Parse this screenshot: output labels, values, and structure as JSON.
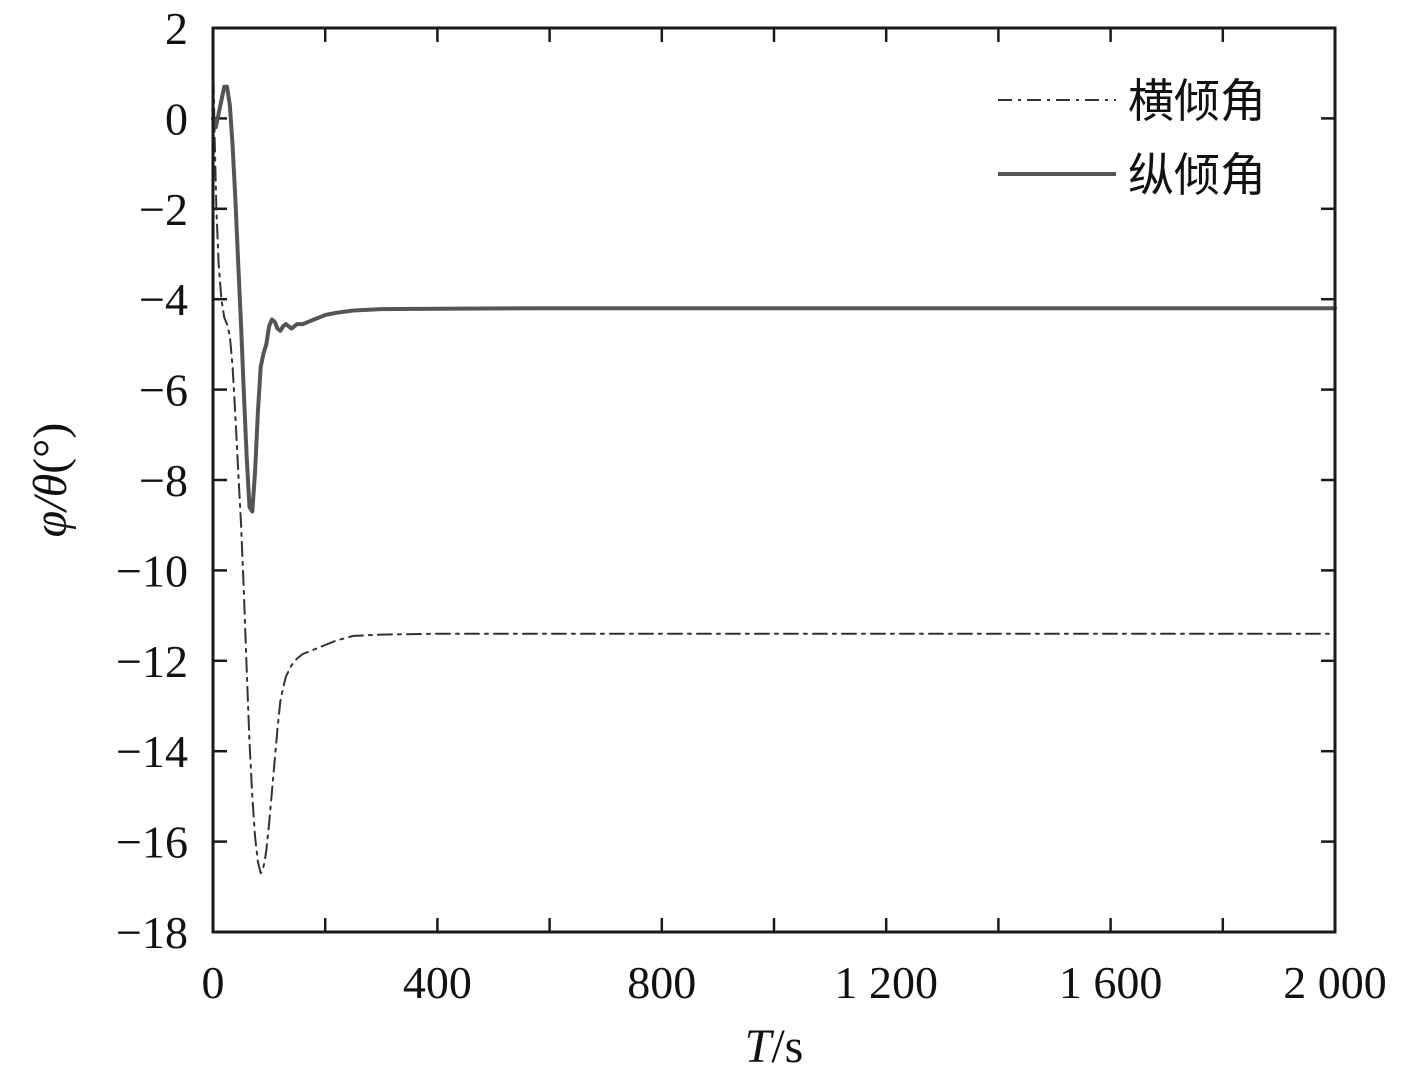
{
  "chart_data": {
    "type": "line",
    "title": "",
    "xlabel": {
      "italic": "T",
      "rest": "/s"
    },
    "ylabel": {
      "italic": "φ/θ",
      "rest": "(°)"
    },
    "xlim": [
      0,
      2000
    ],
    "ylim": [
      -18,
      2
    ],
    "x_ticks": [
      0,
      400,
      800,
      1200,
      1600,
      2000
    ],
    "x_tick_labels": [
      "0",
      "400",
      "800",
      "1 200",
      "1 600",
      "2 000"
    ],
    "x_minor_ticks": [
      200,
      600,
      1000,
      1400,
      1800
    ],
    "y_ticks": [
      2,
      0,
      -2,
      -4,
      -6,
      -8,
      -10,
      -12,
      -14,
      -16,
      -18
    ],
    "y_tick_labels": [
      "2",
      "0",
      "−2",
      "−4",
      "−6",
      "−8",
      "−10",
      "−12",
      "−14",
      "−16",
      "−18"
    ],
    "grid": false,
    "legend_position": "top-right",
    "series": [
      {
        "name": "横倾角",
        "style": "dashdot",
        "color": "#333333",
        "x": [
          0,
          3,
          6,
          10,
          15,
          20,
          25,
          30,
          35,
          40,
          45,
          50,
          55,
          60,
          65,
          70,
          75,
          80,
          85,
          88,
          92,
          95,
          100,
          105,
          110,
          115,
          120,
          125,
          130,
          140,
          150,
          160,
          170,
          180,
          200,
          220,
          250,
          300,
          400,
          600,
          1000,
          1500,
          2000
        ],
        "y": [
          1.5,
          -0.5,
          -2.0,
          -3.2,
          -4.0,
          -4.4,
          -4.55,
          -4.8,
          -5.5,
          -6.6,
          -7.8,
          -9.0,
          -10.5,
          -12.2,
          -13.8,
          -15.0,
          -15.9,
          -16.45,
          -16.7,
          -16.65,
          -16.45,
          -16.2,
          -15.6,
          -14.9,
          -14.2,
          -13.5,
          -12.9,
          -12.6,
          -12.35,
          -12.1,
          -11.95,
          -11.85,
          -11.8,
          -11.75,
          -11.65,
          -11.55,
          -11.45,
          -11.42,
          -11.4,
          -11.4,
          -11.4,
          -11.4,
          -11.4
        ]
      },
      {
        "name": "纵倾角",
        "style": "solid",
        "color": "#555555",
        "x": [
          0,
          5,
          10,
          15,
          20,
          25,
          30,
          35,
          40,
          45,
          50,
          55,
          60,
          65,
          70,
          75,
          80,
          85,
          90,
          95,
          100,
          105,
          110,
          115,
          120,
          125,
          130,
          135,
          140,
          145,
          150,
          160,
          170,
          180,
          190,
          200,
          220,
          250,
          300,
          400,
          600,
          1000,
          1500,
          2000
        ],
        "y": [
          0,
          -0.2,
          0.1,
          0.4,
          0.7,
          0.7,
          0.3,
          -0.6,
          -1.8,
          -3.2,
          -4.6,
          -6.1,
          -7.5,
          -8.6,
          -8.7,
          -7.8,
          -6.5,
          -5.5,
          -5.2,
          -5.0,
          -4.6,
          -4.45,
          -4.5,
          -4.65,
          -4.7,
          -4.6,
          -4.55,
          -4.6,
          -4.65,
          -4.6,
          -4.55,
          -4.55,
          -4.5,
          -4.45,
          -4.4,
          -4.35,
          -4.3,
          -4.25,
          -4.22,
          -4.21,
          -4.2,
          -4.2,
          -4.2,
          -4.2
        ]
      }
    ]
  }
}
